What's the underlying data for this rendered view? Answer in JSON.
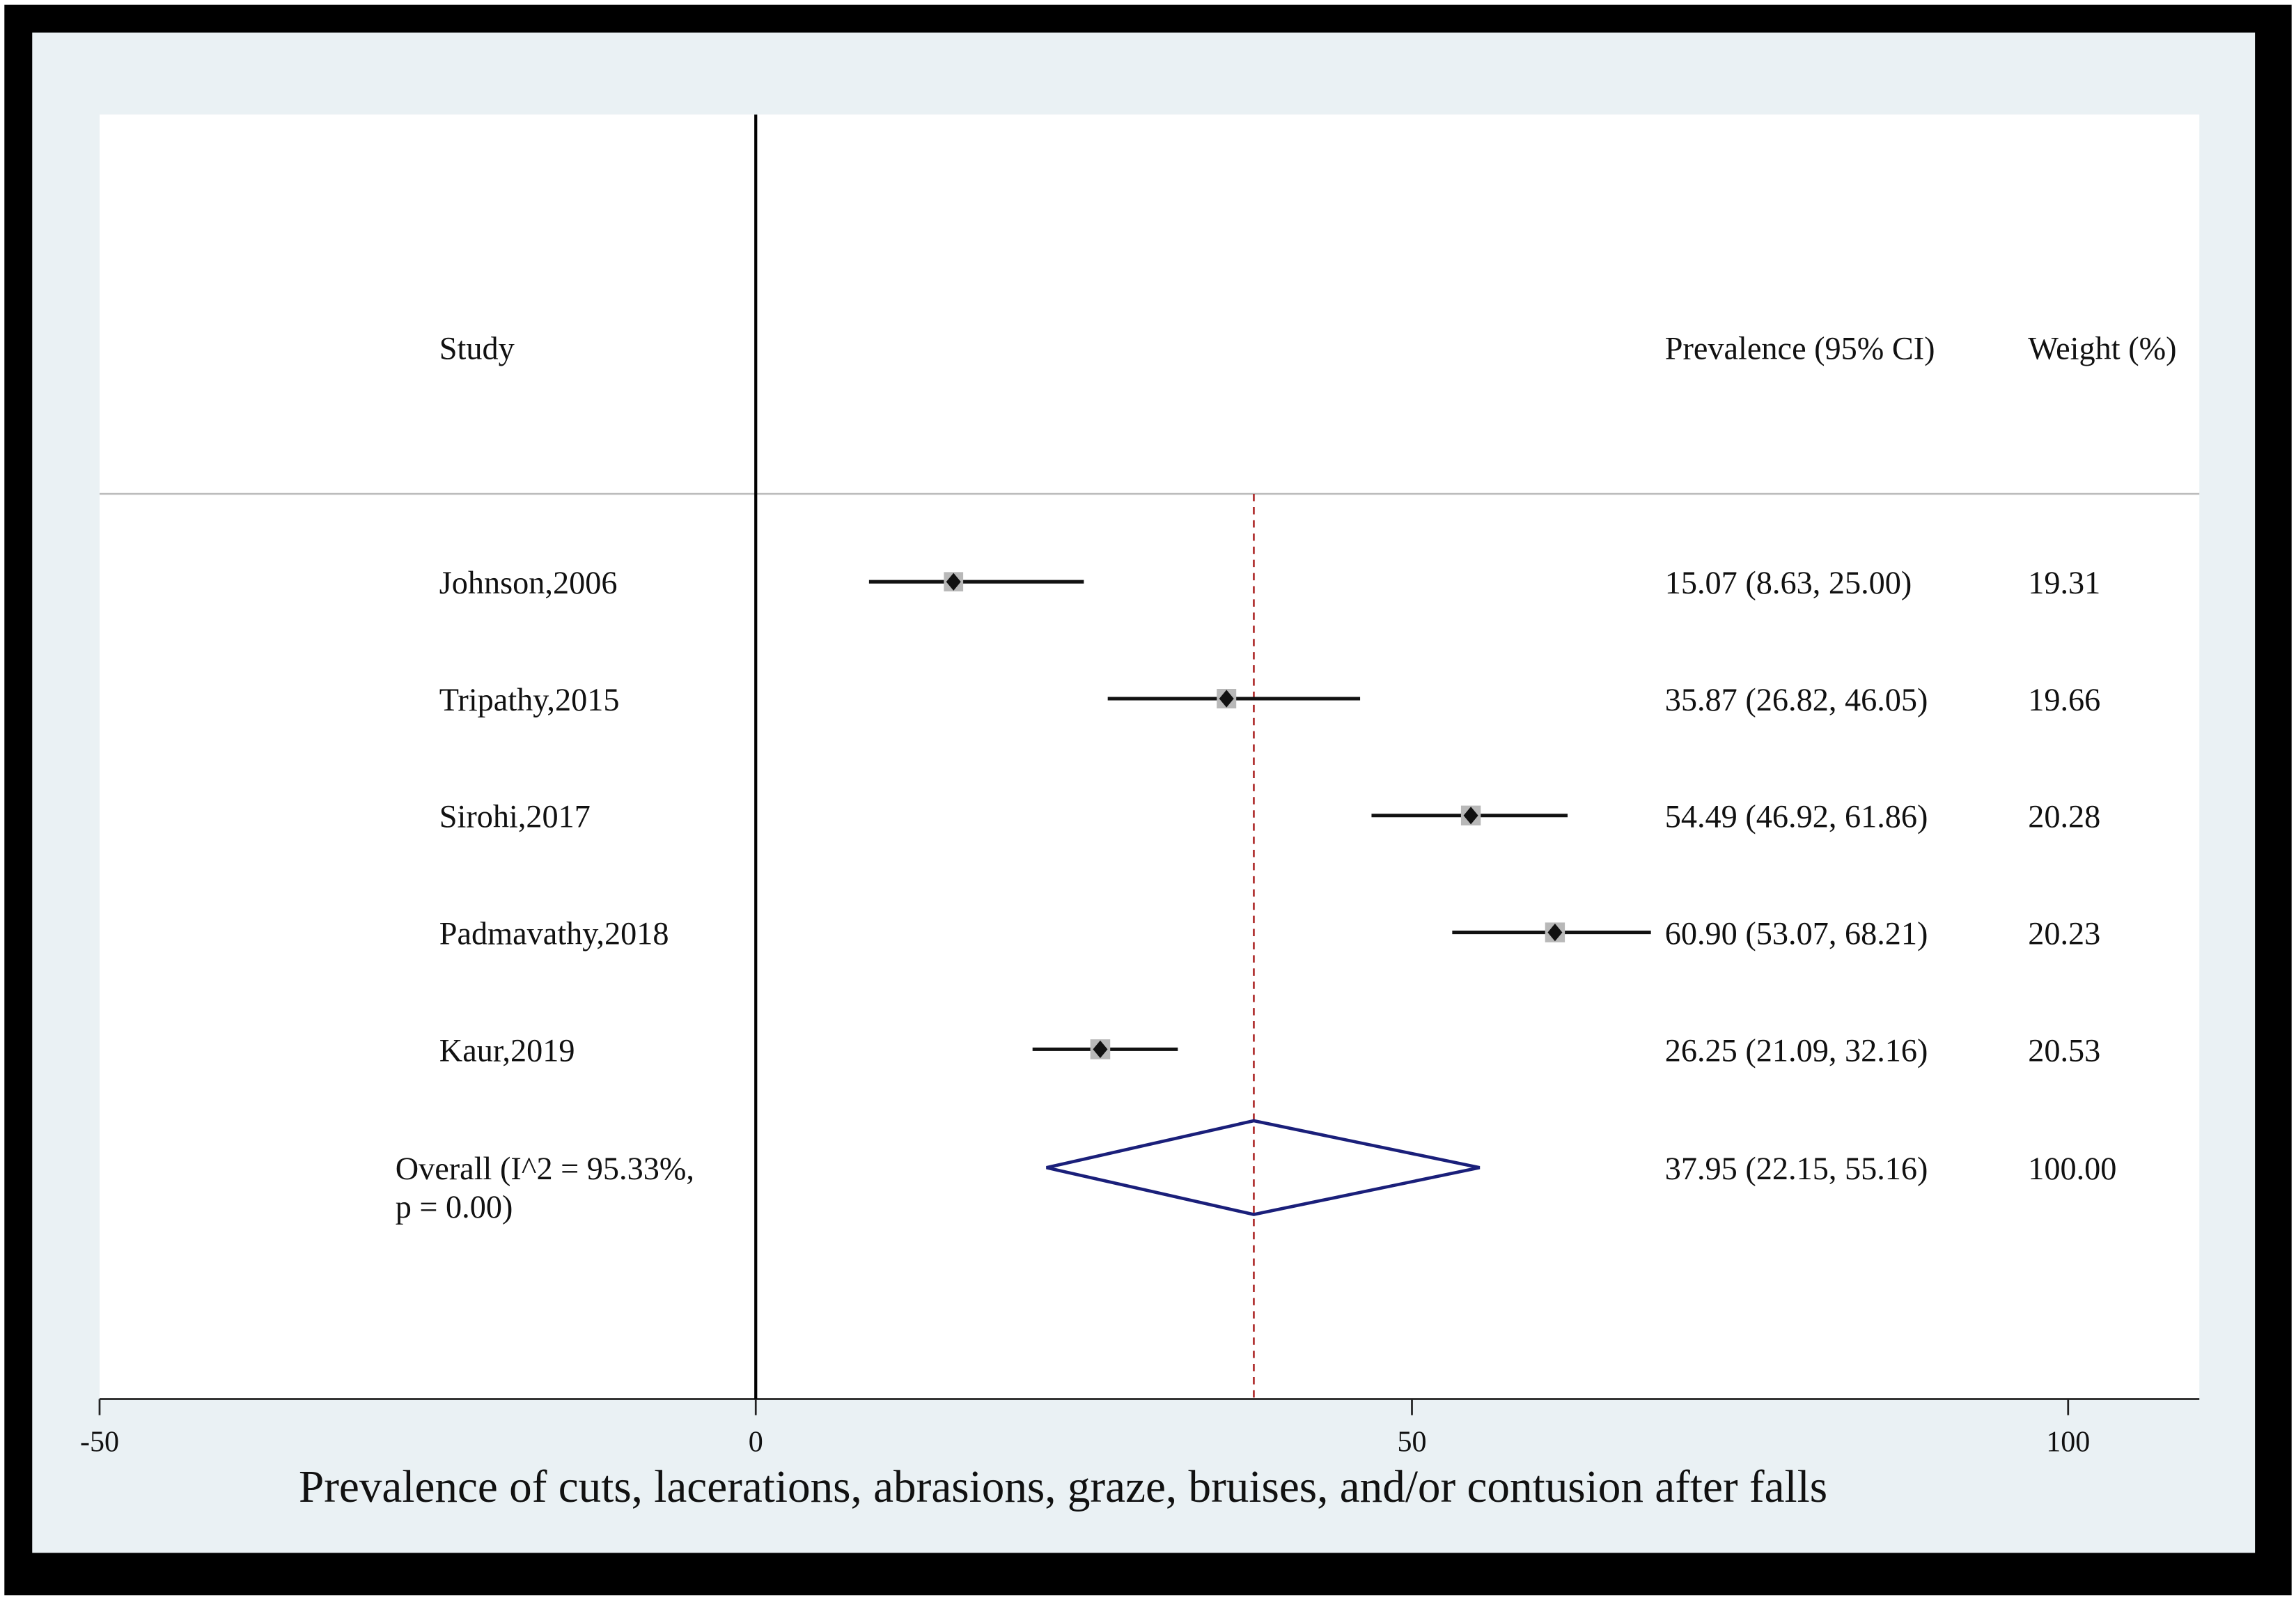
{
  "chart_data": {
    "type": "forest",
    "x_label": "Prevalence of cuts, lacerations, abrasions, graze, bruises, and/or contusion after falls",
    "column_headers": {
      "study": "Study",
      "estimate": "Prevalence (95% CI)",
      "weight": "Weight (%)"
    },
    "categories": [
      "Johnson,2006",
      "Tripathy,2015",
      "Sirohi,2017",
      "Padmavathy,2018",
      "Kaur,2019"
    ],
    "values": [
      15.07,
      35.87,
      54.49,
      60.9,
      26.25
    ],
    "ci_low": [
      8.63,
      26.82,
      46.92,
      53.07,
      21.09
    ],
    "ci_high": [
      25.0,
      46.05,
      61.86,
      68.21,
      32.16
    ],
    "value_labels": [
      "15.07 (8.63, 25.00)",
      "35.87 (26.82, 46.05)",
      "54.49 (46.92, 61.86)",
      "60.90 (53.07, 68.21)",
      "26.25 (21.09, 32.16)"
    ],
    "weights": [
      19.31,
      19.66,
      20.28,
      20.23,
      20.53
    ],
    "overall": {
      "label_lines": [
        "Overall  (I^2 = 95.33%,",
        "p = 0.00)"
      ],
      "value": 37.95,
      "ci_low": 22.15,
      "ci_high": 55.16,
      "value_label": "37.95 (22.15, 55.16)",
      "weight": {
        "value": 100,
        "label": "100.00"
      },
      "color": "#1a1f7a"
    },
    "reference_line": 0,
    "overall_line_color": "#b03030",
    "marker_color": "#111111",
    "box_color": "#b8b8b8",
    "xlim": [
      -50,
      110
    ],
    "xticks": [
      -50,
      0,
      50,
      100
    ]
  }
}
